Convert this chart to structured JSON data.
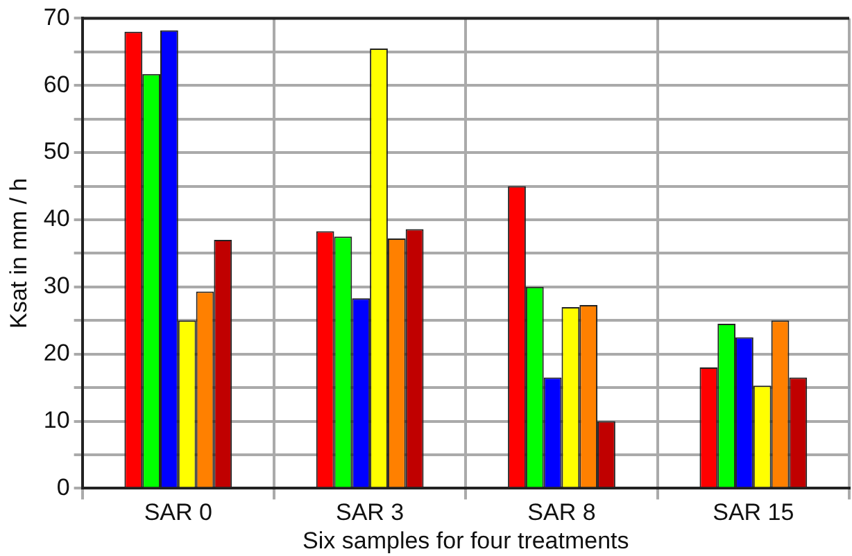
{
  "chart_data": {
    "type": "bar",
    "xlabel": "Six samples for four treatments",
    "ylabel": "Ksat in mm / h",
    "categories": [
      "SAR 0",
      "SAR 3",
      "SAR 8",
      "SAR 15"
    ],
    "series": [
      {
        "color": "#ff0000",
        "values": [
          68,
          38.3,
          45,
          18
        ]
      },
      {
        "color": "#00ff00",
        "values": [
          61.7,
          37.5,
          30,
          24.5
        ]
      },
      {
        "color": "#0000ff",
        "values": [
          68.2,
          28.3,
          16.5,
          22.5
        ]
      },
      {
        "color": "#ffff00",
        "values": [
          25,
          65.5,
          27,
          15.3
        ]
      },
      {
        "color": "#ff8000",
        "values": [
          29.3,
          37.2,
          27.3,
          25
        ]
      },
      {
        "color": "#c00000",
        "values": [
          37,
          38.6,
          10,
          16.5
        ]
      }
    ],
    "ylim": [
      0,
      70
    ],
    "yticks": [
      0,
      {
        "value": 5,
        "label": null
      },
      10,
      {
        "value": 15,
        "label": null
      },
      20,
      {
        "value": 25,
        "label": null
      },
      30,
      {
        "value": 35,
        "label": null
      },
      40,
      {
        "value": 45,
        "label": null
      },
      50,
      {
        "value": 55,
        "label": null
      },
      60,
      {
        "value": 65,
        "label": null
      },
      70
    ],
    "grid": true,
    "legend": false
  }
}
